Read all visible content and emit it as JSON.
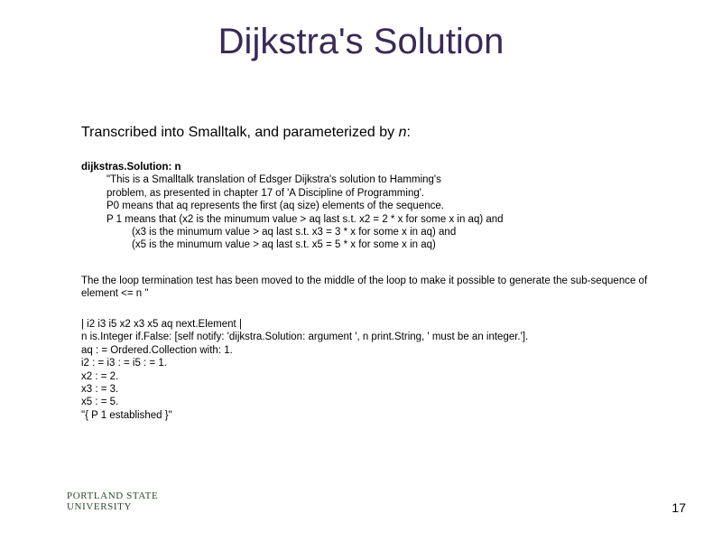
{
  "colors": {
    "title": "#3a2a55",
    "text": "#000000",
    "logo": "#2b4a2b",
    "background": "#ffffff"
  },
  "title": "Dijkstra's Solution",
  "subtitle_prefix": "Transcribed into Smalltalk, and parameterized by ",
  "subtitle_n": "n",
  "subtitle_suffix": ":",
  "code": {
    "header": "dijkstras.Solution: n",
    "comment_lines": [
      "\"This is a Smalltalk translation of Edsger Dijkstra's solution to Hamming's",
      "problem, as presented in chapter 17 of 'A Discipline of Programming'.",
      "P0 means that aq represents the first (aq size) elements of the sequence.",
      "P 1 means that (x2 is the minumum value > aq last s.t. x2 = 2 * x for some x in aq) and"
    ],
    "comment_inner_lines": [
      "(x3 is the minumum value > aq last s.t. x3 = 3 * x for some x in aq) and",
      "(x5 is the minumum value > aq last s.t. x5 = 5 * x for some x in aq)"
    ],
    "middle_para": "The the loop termination test has been moved to the middle of the loop to make it possible to generate the sub-sequence of element <= n \"",
    "stmt_lines": [
      "| i2 i3 i5 x2 x3 x5 aq next.Element |",
      "n is.Integer if.False: [self notify: 'dijkstra.Solution: argument ', n print.String, ' must be an integer.'].",
      "aq : = Ordered.Collection with: 1.",
      "i2 : = i3 : = i5 : = 1.",
      "x2 : = 2.",
      "x3 : = 3.",
      "x5 : = 5.",
      "\"{ P 1 established }\""
    ]
  },
  "logo": {
    "line1": "PORTLAND STATE",
    "line2": "UNIVERSITY"
  },
  "page_number": "17"
}
